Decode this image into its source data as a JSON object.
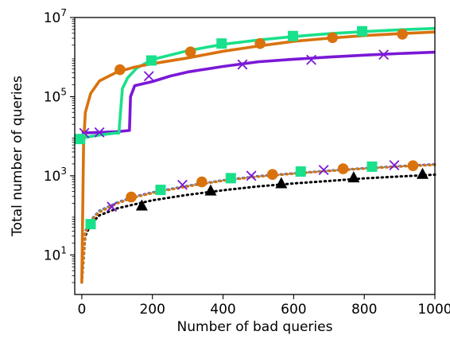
{
  "chart_data": {
    "type": "line",
    "xlabel": "Number of bad queries",
    "ylabel": "Total number of queries",
    "xlim": [
      -20,
      1000
    ],
    "ylim": [
      1,
      10000000
    ],
    "yscale": "log",
    "grid": false,
    "legend": "none",
    "x_ticks": [
      {
        "value": 0,
        "label": "0"
      },
      {
        "value": 200,
        "label": "200"
      },
      {
        "value": 400,
        "label": "400"
      },
      {
        "value": 600,
        "label": "600"
      },
      {
        "value": 800,
        "label": "800"
      },
      {
        "value": 1000,
        "label": "1000"
      }
    ],
    "y_ticks": [
      {
        "value": 10,
        "base": "10",
        "exp": "1"
      },
      {
        "value": 1000,
        "base": "10",
        "exp": "3"
      },
      {
        "value": 100000,
        "base": "10",
        "exp": "5"
      },
      {
        "value": 10000000,
        "base": "10",
        "exp": "7"
      }
    ],
    "series": [
      {
        "line_style": "solid",
        "color": "#7a18d6",
        "marker": "x",
        "marker_color": "#7a18d6",
        "points": [
          [
            0,
            12000
          ],
          [
            50,
            12500
          ],
          [
            100,
            13000
          ],
          [
            135,
            14000
          ],
          [
            138,
            100000
          ],
          [
            150,
            190000
          ],
          [
            200,
            240000
          ],
          [
            250,
            330000
          ],
          [
            300,
            420000
          ],
          [
            400,
            580000
          ],
          [
            500,
            760000
          ],
          [
            600,
            880000
          ],
          [
            700,
            1000000
          ],
          [
            800,
            1120000
          ],
          [
            900,
            1230000
          ],
          [
            1000,
            1330000
          ]
        ],
        "marker_points": [
          [
            7,
            12000
          ],
          [
            50,
            12500
          ],
          [
            190,
            330000
          ],
          [
            455,
            650000
          ],
          [
            650,
            850000
          ],
          [
            855,
            1150000
          ]
        ]
      },
      {
        "line_style": "solid",
        "color": "#19e08a",
        "marker": "square",
        "marker_color": "#19e08a",
        "points": [
          [
            0,
            9000
          ],
          [
            30,
            10000
          ],
          [
            60,
            11000
          ],
          [
            95,
            12000
          ],
          [
            105,
            12000
          ],
          [
            115,
            160000
          ],
          [
            130,
            300000
          ],
          [
            155,
            520000
          ],
          [
            200,
            870000
          ],
          [
            300,
            1450000
          ],
          [
            400,
            2100000
          ],
          [
            500,
            2700000
          ],
          [
            600,
            3300000
          ],
          [
            700,
            3900000
          ],
          [
            800,
            4400000
          ],
          [
            900,
            4900000
          ],
          [
            1000,
            5300000
          ]
        ],
        "marker_points": [
          [
            -5,
            8500
          ],
          [
            197,
            820000
          ],
          [
            396,
            2200000
          ],
          [
            598,
            3400000
          ],
          [
            794,
            4500000
          ]
        ]
      },
      {
        "line_style": "solid",
        "color": "#d9720d",
        "marker": "circle",
        "marker_color": "#d9720d",
        "points": [
          [
            0,
            2
          ],
          [
            5,
            6000
          ],
          [
            10,
            40000
          ],
          [
            25,
            120000
          ],
          [
            50,
            250000
          ],
          [
            100,
            420000
          ],
          [
            150,
            560000
          ],
          [
            200,
            680000
          ],
          [
            300,
            950000
          ],
          [
            400,
            1400000
          ],
          [
            500,
            1900000
          ],
          [
            600,
            2500000
          ],
          [
            700,
            3000000
          ],
          [
            800,
            3500000
          ],
          [
            900,
            3900000
          ],
          [
            1000,
            4300000
          ]
        ],
        "marker_points": [
          [
            108,
            480000
          ],
          [
            308,
            1350000
          ],
          [
            505,
            2200000
          ],
          [
            710,
            3100000
          ],
          [
            908,
            3800000
          ]
        ]
      },
      {
        "line_style": "dotted",
        "color": "#000000",
        "marker": "triangle",
        "marker_color": "#000000",
        "points": [
          [
            0,
            2
          ],
          [
            10,
            30
          ],
          [
            25,
            60
          ],
          [
            50,
            100
          ],
          [
            100,
            150
          ],
          [
            150,
            190
          ],
          [
            200,
            240
          ],
          [
            300,
            330
          ],
          [
            400,
            430
          ],
          [
            500,
            540
          ],
          [
            600,
            640
          ],
          [
            700,
            740
          ],
          [
            800,
            860
          ],
          [
            900,
            960
          ],
          [
            1000,
            1070
          ]
        ],
        "marker_points": [
          [
            170,
            175
          ],
          [
            365,
            420
          ],
          [
            565,
            640
          ],
          [
            770,
            900
          ],
          [
            965,
            1100
          ]
        ]
      },
      {
        "line_style": "dotted",
        "color": "#7a18d6",
        "marker": "x",
        "marker_color": "#7a18d6",
        "points": [
          [
            0,
            2
          ],
          [
            10,
            40
          ],
          [
            25,
            75
          ],
          [
            50,
            130
          ],
          [
            100,
            210
          ],
          [
            150,
            300
          ],
          [
            200,
            380
          ],
          [
            300,
            560
          ],
          [
            400,
            770
          ],
          [
            500,
            980
          ],
          [
            600,
            1150
          ],
          [
            700,
            1350
          ],
          [
            800,
            1550
          ],
          [
            900,
            1750
          ],
          [
            1000,
            1950
          ]
        ],
        "marker_points": [
          [
            85,
            165
          ],
          [
            285,
            590
          ],
          [
            480,
            1000
          ],
          [
            685,
            1400
          ],
          [
            885,
            1850
          ]
        ]
      },
      {
        "line_style": "dotted",
        "color": "#19e08a",
        "marker": "square",
        "marker_color": "#19e08a",
        "points": [
          [
            0,
            2
          ],
          [
            10,
            38
          ],
          [
            25,
            72
          ],
          [
            50,
            125
          ],
          [
            100,
            205
          ],
          [
            150,
            290
          ],
          [
            200,
            370
          ],
          [
            300,
            550
          ],
          [
            400,
            760
          ],
          [
            500,
            960
          ],
          [
            600,
            1140
          ],
          [
            700,
            1330
          ],
          [
            800,
            1530
          ],
          [
            900,
            1720
          ],
          [
            1000,
            1900
          ]
        ],
        "marker_points": [
          [
            25,
            60
          ],
          [
            223,
            440
          ],
          [
            422,
            870
          ],
          [
            620,
            1280
          ],
          [
            822,
            1700
          ]
        ]
      },
      {
        "line_style": "dotted",
        "color": "#d9720d",
        "marker": "circle",
        "marker_color": "#d9720d",
        "points": [
          [
            0,
            2
          ],
          [
            10,
            36
          ],
          [
            25,
            70
          ],
          [
            50,
            120
          ],
          [
            100,
            200
          ],
          [
            150,
            285
          ],
          [
            200,
            365
          ],
          [
            300,
            540
          ],
          [
            400,
            750
          ],
          [
            500,
            950
          ],
          [
            600,
            1130
          ],
          [
            700,
            1320
          ],
          [
            800,
            1520
          ],
          [
            900,
            1710
          ],
          [
            1000,
            1890
          ]
        ],
        "marker_points": [
          [
            140,
            290
          ],
          [
            340,
            700
          ],
          [
            540,
            1080
          ],
          [
            740,
            1500
          ],
          [
            938,
            1800
          ]
        ]
      }
    ]
  }
}
